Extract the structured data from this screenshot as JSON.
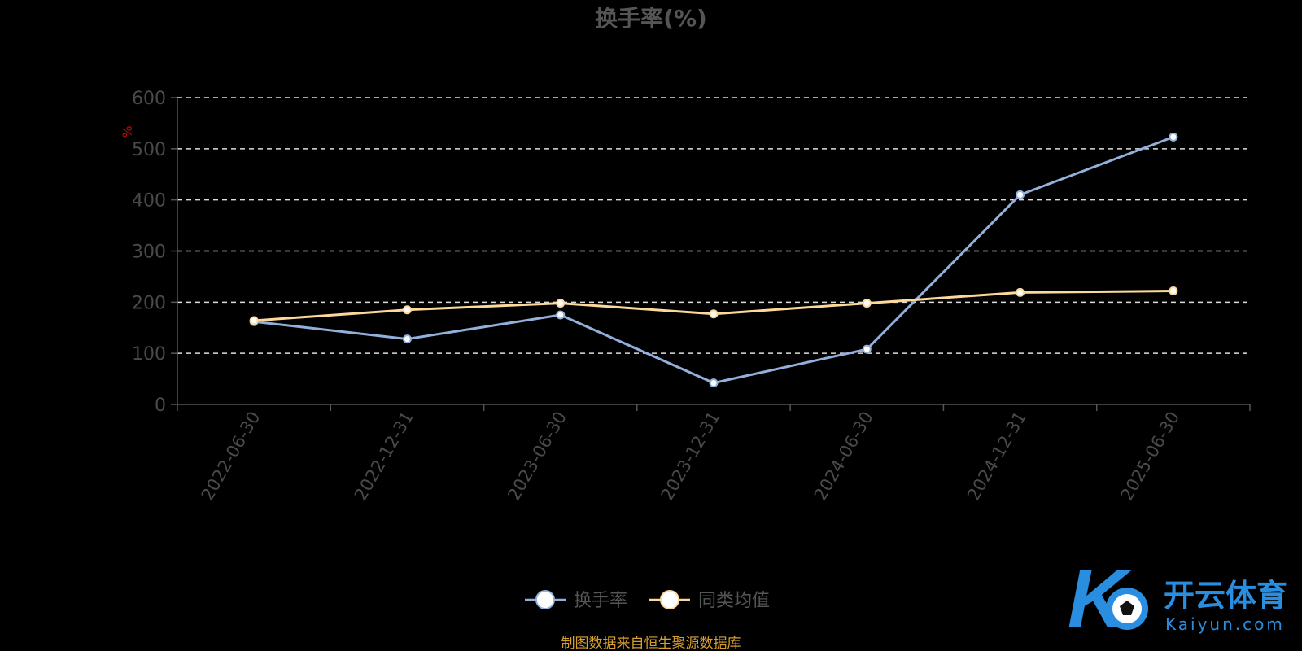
{
  "chart_data": {
    "type": "line",
    "title": "换手率(%)",
    "ylabel": "%",
    "xlabel": "",
    "ylim": [
      0,
      600
    ],
    "yticks": [
      0,
      100,
      200,
      300,
      400,
      500,
      600
    ],
    "categories": [
      "2022-06-30",
      "2022-12-31",
      "2023-06-30",
      "2023-12-31",
      "2024-06-30",
      "2024-12-31",
      "2025-06-30"
    ],
    "grid": true,
    "legend_position": "bottom",
    "series": [
      {
        "name": "换手率",
        "color": "#93afdb",
        "values": [
          162,
          128,
          175,
          42,
          108,
          410,
          523
        ]
      },
      {
        "name": "同类均值",
        "color": "#fcd89a",
        "values": [
          164,
          185,
          198,
          177,
          198,
          219,
          222
        ]
      }
    ]
  },
  "source_note": "制图数据来自恒生聚源数据库",
  "watermark": {
    "text": "开云体育",
    "sub": "Kaiyun.com"
  }
}
